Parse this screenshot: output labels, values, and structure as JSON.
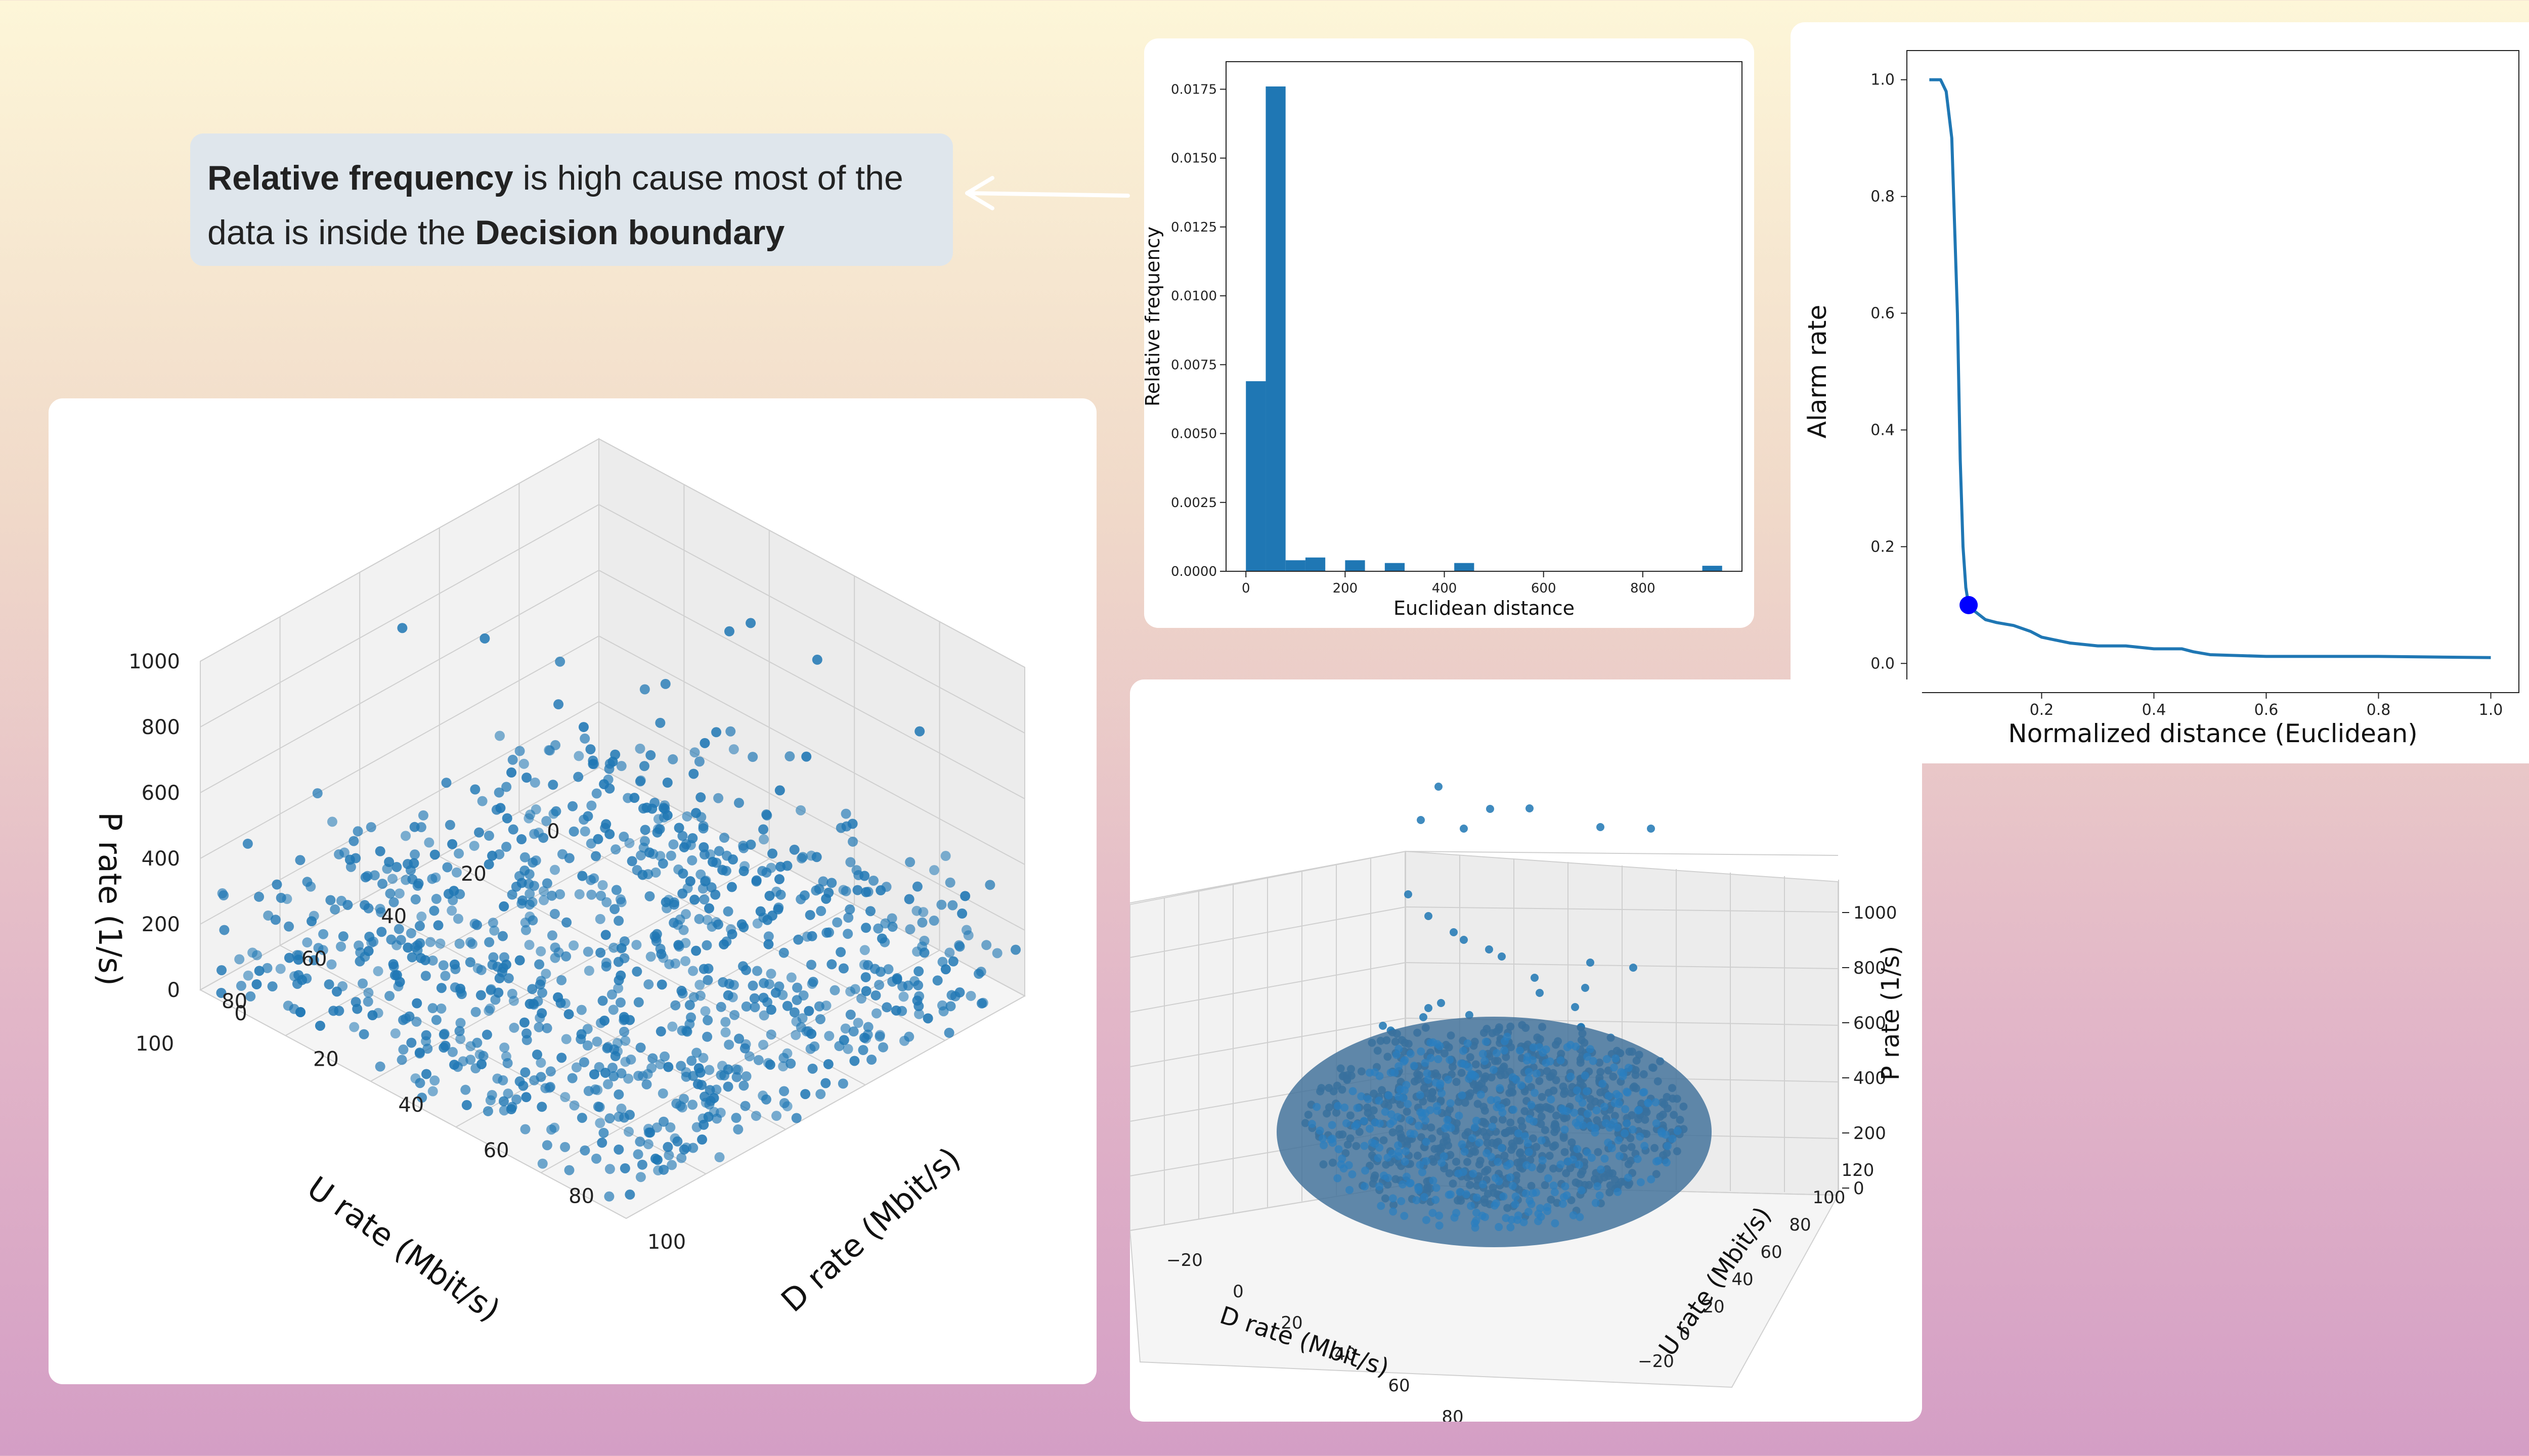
{
  "callout": {
    "bold_1": "Relative frequency",
    "text_1": " is high cause most of the data is inside the ",
    "bold_2": "Decision boundary"
  },
  "colors": {
    "series": "#1f77b4",
    "marker": "#0000ff",
    "boundary": "#3e6f98"
  },
  "chart_data": [
    {
      "type": "scatter",
      "title": "",
      "xlabel": "D rate (Mbit/s)",
      "ylabel": "U rate (Mbit/s)",
      "zlabel": "P rate (1/s)",
      "x_ticks": [
        "0",
        "20",
        "40",
        "60",
        "80",
        "100"
      ],
      "y_ticks": [
        "0",
        "20",
        "40",
        "60",
        "80",
        "100"
      ],
      "z_ticks": [
        "0",
        "200",
        "400",
        "600",
        "800",
        "1000"
      ],
      "xlim": [
        0,
        100
      ],
      "ylim": [
        0,
        100
      ],
      "zlim": [
        0,
        1000
      ],
      "grid": true,
      "point_count_approx": 1000,
      "note_points": "uniform random D and U in [0,100], P mostly in [0,500] with a few outliers near 600-1000"
    },
    {
      "type": "bar",
      "title": "",
      "xlabel": "Euclidean distance",
      "ylabel": "Relative frequency",
      "x_ticks": [
        "0",
        "200",
        "400",
        "600",
        "800"
      ],
      "y_ticks": [
        "0.0000",
        "0.0025",
        "0.0050",
        "0.0075",
        "0.0100",
        "0.0125",
        "0.0150",
        "0.0175"
      ],
      "xlim": [
        -40,
        1000
      ],
      "ylim": [
        0,
        0.0185
      ],
      "bins": [
        {
          "x0": 0,
          "x1": 40,
          "value": 0.0069
        },
        {
          "x0": 40,
          "x1": 80,
          "value": 0.0176
        },
        {
          "x0": 80,
          "x1": 120,
          "value": 0.0004
        },
        {
          "x0": 120,
          "x1": 160,
          "value": 0.0005
        },
        {
          "x0": 200,
          "x1": 240,
          "value": 0.0004
        },
        {
          "x0": 280,
          "x1": 320,
          "value": 0.0003
        },
        {
          "x0": 420,
          "x1": 460,
          "value": 0.0003
        },
        {
          "x0": 920,
          "x1": 960,
          "value": 0.0002
        }
      ]
    },
    {
      "type": "line",
      "title": "",
      "xlabel": "Normalized distance (Euclidean)",
      "ylabel": "Alarm rate",
      "x_ticks": [
        "0.2",
        "0.4",
        "0.6",
        "0.8",
        "1.0"
      ],
      "y_ticks": [
        "0.0",
        "0.2",
        "0.4",
        "0.6",
        "0.8",
        "1.0"
      ],
      "xlim": [
        -0.04,
        1.05
      ],
      "ylim": [
        -0.05,
        1.05
      ],
      "x": [
        0.0,
        0.02,
        0.03,
        0.04,
        0.05,
        0.055,
        0.06,
        0.065,
        0.07,
        0.08,
        0.1,
        0.12,
        0.15,
        0.18,
        0.2,
        0.25,
        0.3,
        0.35,
        0.4,
        0.45,
        0.47,
        0.5,
        0.6,
        0.8,
        1.0
      ],
      "y": [
        1.0,
        1.0,
        0.98,
        0.9,
        0.6,
        0.35,
        0.2,
        0.13,
        0.1,
        0.09,
        0.075,
        0.07,
        0.065,
        0.055,
        0.045,
        0.035,
        0.03,
        0.03,
        0.025,
        0.025,
        0.02,
        0.015,
        0.012,
        0.012,
        0.01
      ],
      "highlight_point": {
        "x": 0.07,
        "y": 0.1
      }
    },
    {
      "type": "scatter",
      "title": "",
      "xlabel": "D rate (Mbit/s)",
      "ylabel": "U rate (Mbit/s)",
      "zlabel": "P rate (1/s)",
      "x_ticks": [
        "−20",
        "0",
        "20",
        "40",
        "60",
        "80",
        "100",
        "120"
      ],
      "y_ticks": [
        "−20",
        "0",
        "20",
        "40",
        "60",
        "80",
        "100",
        "120"
      ],
      "z_ticks": [
        "0",
        "200",
        "400",
        "600",
        "800",
        "1000"
      ],
      "xlim": [
        -30,
        130
      ],
      "ylim": [
        -30,
        130
      ],
      "zlim": [
        0,
        1050
      ],
      "grid": true,
      "decision_boundary": "ellipsoid enclosing the bulk of the points"
    }
  ]
}
